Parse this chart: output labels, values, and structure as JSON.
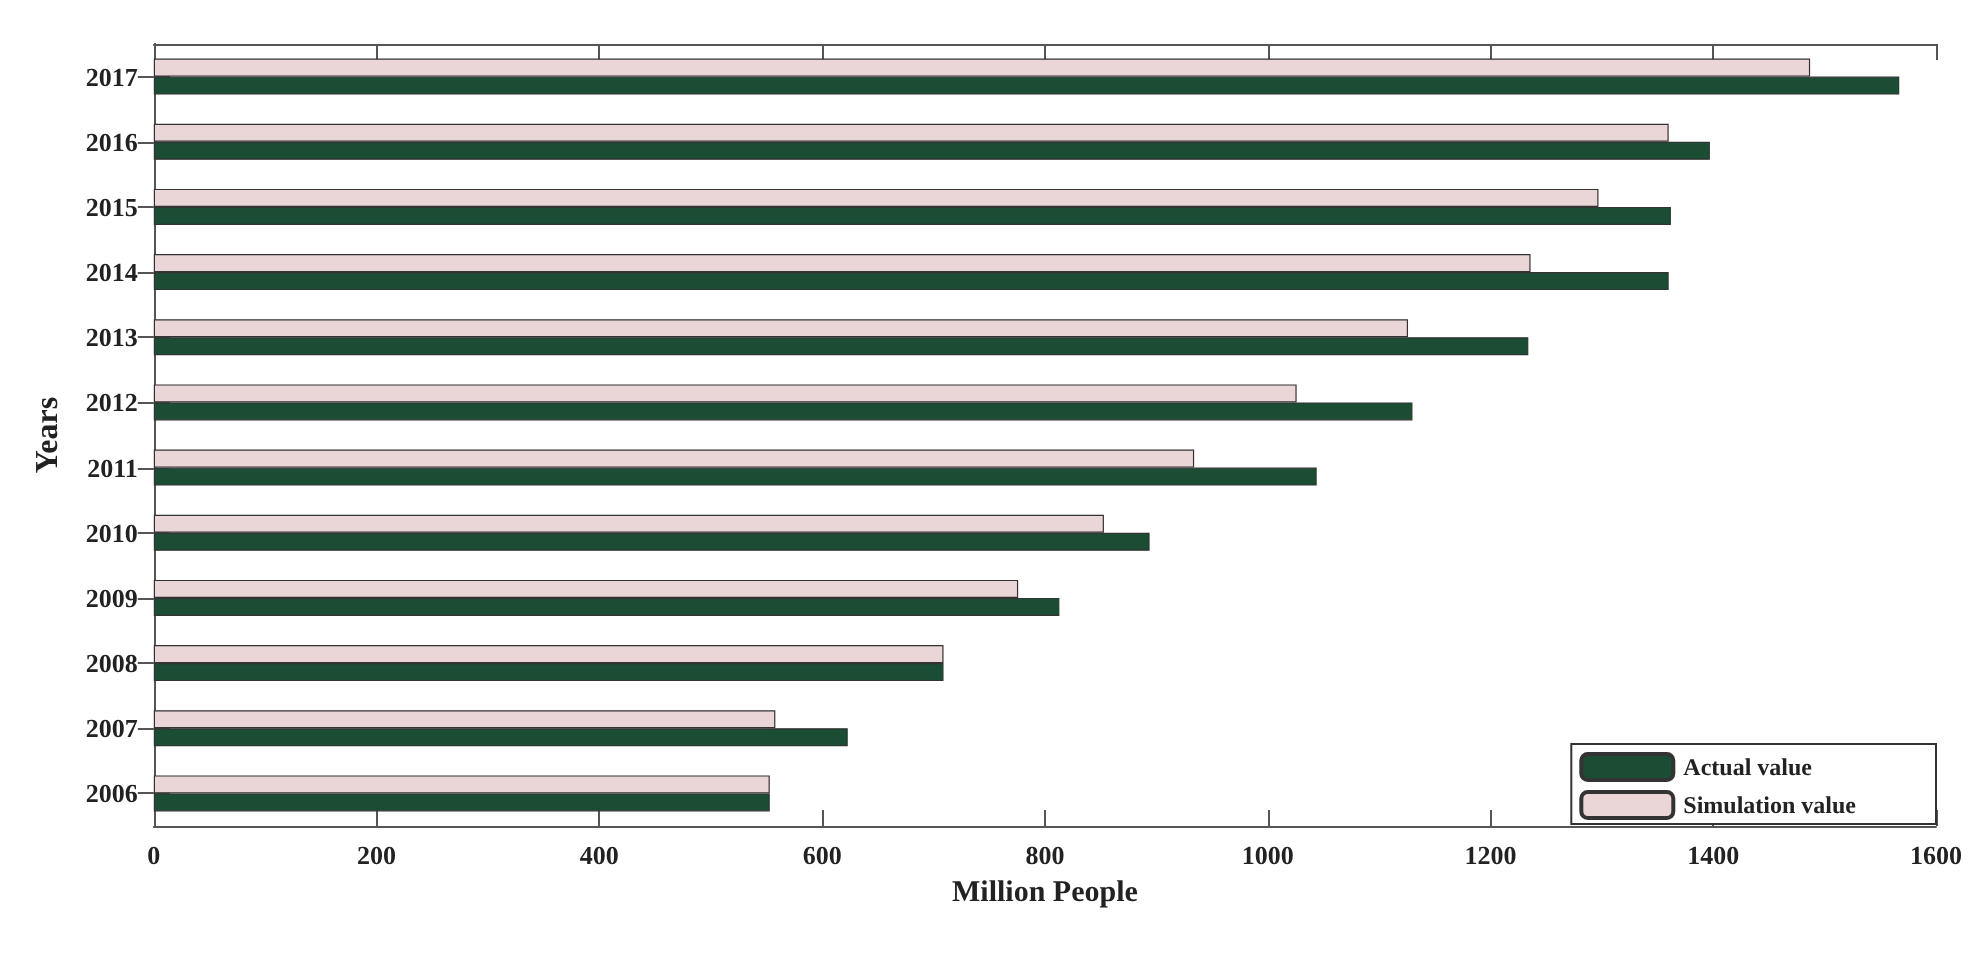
{
  "chart_data": {
    "type": "bar",
    "orientation": "horizontal",
    "xlabel": "Million People",
    "ylabel": "Years",
    "categories": [
      "2017",
      "2016",
      "2015",
      "2014",
      "2013",
      "2012",
      "2011",
      "2010",
      "2009",
      "2008",
      "2007",
      "2006"
    ],
    "series": [
      {
        "name": "Actual value",
        "color": "#1b4d34",
        "values": [
          1567,
          1397,
          1362,
          1360,
          1234,
          1130,
          1044,
          894,
          813,
          709,
          623,
          553
        ]
      },
      {
        "name": "Simulation value",
        "color": "#ead6d6",
        "values": [
          1487,
          1360,
          1297,
          1236,
          1126,
          1026,
          934,
          853,
          776,
          709,
          558,
          553
        ]
      }
    ],
    "xlim": [
      0,
      1600
    ],
    "xticks": [
      0,
      200,
      400,
      600,
      800,
      1000,
      1200,
      1400,
      1600
    ],
    "grid": false,
    "legend": "bottom right"
  }
}
